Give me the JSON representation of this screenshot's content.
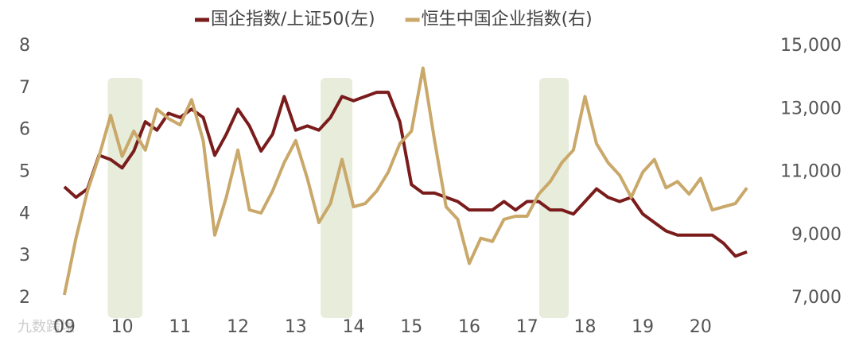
{
  "chart_data": {
    "type": "line",
    "legend_position": "top",
    "x": [
      9.0,
      9.2,
      9.4,
      9.6,
      9.8,
      10.0,
      10.2,
      10.4,
      10.6,
      10.8,
      11.0,
      11.2,
      11.4,
      11.6,
      11.8,
      12.0,
      12.2,
      12.4,
      12.6,
      12.8,
      13.0,
      13.2,
      13.4,
      13.6,
      13.8,
      14.0,
      14.2,
      14.4,
      14.6,
      14.8,
      15.0,
      15.2,
      15.4,
      15.6,
      15.8,
      16.0,
      16.2,
      16.4,
      16.6,
      16.8,
      17.0,
      17.2,
      17.4,
      17.6,
      17.8,
      18.0,
      18.2,
      18.4,
      18.6,
      18.8,
      19.0,
      19.2,
      19.4,
      19.6,
      19.8,
      20.0,
      20.2,
      20.4,
      20.6,
      20.8
    ],
    "xlim": [
      8.85,
      20.95
    ],
    "xticks": [
      {
        "value": 9,
        "label": "09"
      },
      10,
      11,
      12,
      13,
      14,
      15,
      16,
      17,
      18,
      19,
      20
    ],
    "ylim": [
      2,
      8
    ],
    "yticks": [
      2,
      3,
      4,
      5,
      6,
      7,
      8
    ],
    "y2lim": [
      7000,
      15000
    ],
    "y2ticks": [
      {
        "value": 7000,
        "label": "7,000"
      },
      {
        "value": 9000,
        "label": "9,000"
      },
      {
        "value": 11000,
        "label": "11,000"
      },
      {
        "value": 13000,
        "label": "13,000"
      },
      {
        "value": 15000,
        "label": "15,000"
      }
    ],
    "shaded_periods": [
      {
        "start": 9.75,
        "end": 10.35
      },
      {
        "start": 13.43,
        "end": 13.98
      },
      {
        "start": 17.21,
        "end": 17.72
      }
    ],
    "shade_color": "#e7ecdb",
    "series": [
      {
        "name": "国企指数/上证50(左)",
        "color": "#7a1c1c",
        "values": [
          4.65,
          4.4,
          4.6,
          5.4,
          5.3,
          5.1,
          5.5,
          6.2,
          6.0,
          6.4,
          6.3,
          6.5,
          6.3,
          5.4,
          5.9,
          6.5,
          6.1,
          5.5,
          5.9,
          6.8,
          6.0,
          6.1,
          6.0,
          6.3,
          6.8,
          6.7,
          6.8,
          6.9,
          6.9,
          6.2,
          4.7,
          4.5,
          4.5,
          4.4,
          4.3,
          4.1,
          4.1,
          4.1,
          4.3,
          4.1,
          4.3,
          4.3,
          4.1,
          4.1,
          4.0,
          4.3,
          4.6,
          4.4,
          4.3,
          4.4,
          4.0,
          3.8,
          3.6,
          3.5,
          3.5,
          3.5,
          3.5,
          3.3,
          3.0,
          3.1
        ]
      },
      {
        "name": "恒生中国企业指数(右)",
        "color": "#c9a86a",
        "axis": "y2",
        "values": [
          7100,
          8900,
          10400,
          11500,
          12800,
          11500,
          12300,
          11700,
          13000,
          12700,
          12500,
          13300,
          12000,
          9000,
          10200,
          11700,
          9800,
          9700,
          10400,
          11300,
          12000,
          10800,
          9400,
          10000,
          11400,
          9900,
          10000,
          10400,
          11000,
          11900,
          12300,
          14300,
          12000,
          9900,
          9500,
          8100,
          8900,
          8800,
          9500,
          9600,
          9600,
          10300,
          10700,
          11300,
          11700,
          13400,
          11900,
          11300,
          10900,
          10200,
          11000,
          11400,
          10500,
          10700,
          10300,
          10800,
          9800,
          9900,
          10000,
          10500
        ]
      }
    ],
    "watermark": "九数跨境"
  }
}
